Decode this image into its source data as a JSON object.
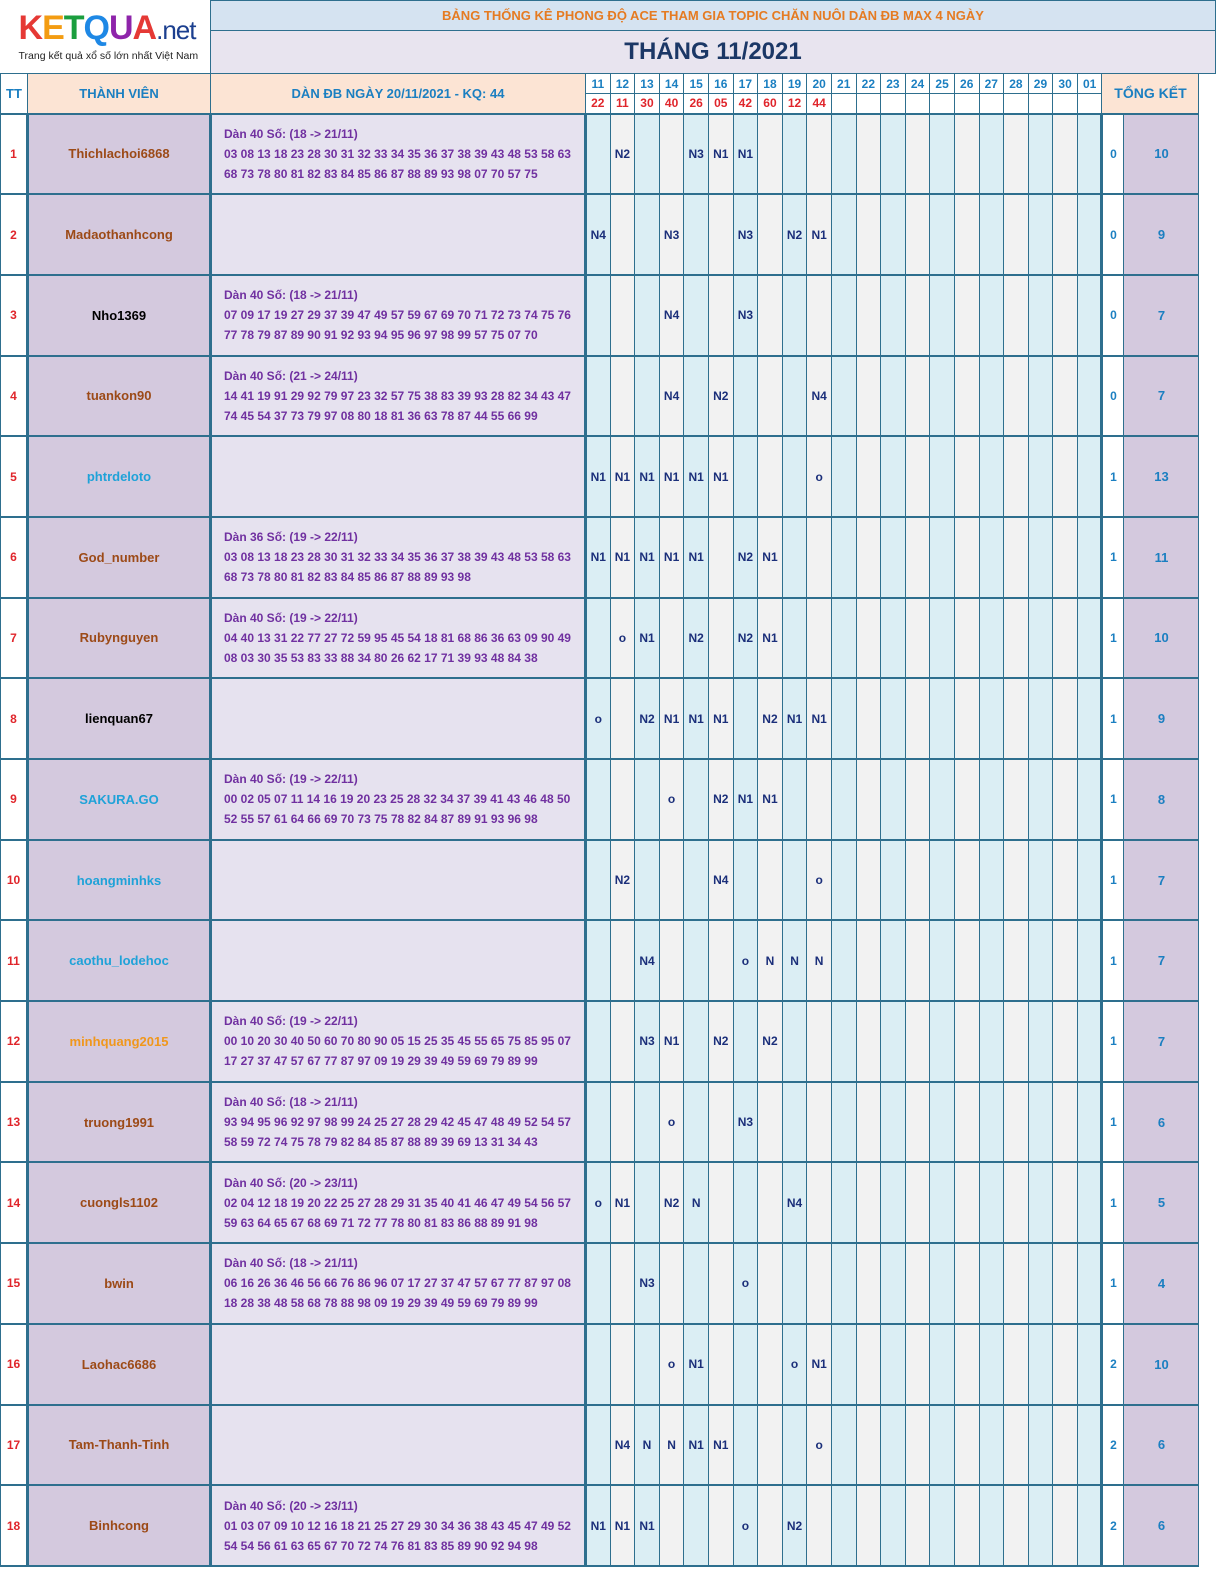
{
  "logo": {
    "letters": [
      "K",
      "E",
      "T",
      "Q",
      "U",
      "A"
    ],
    "letter_colors": [
      "#e53935",
      "#f39c12",
      "#1b9e3e",
      "#1e88e5",
      "#8e24aa",
      "#e53935"
    ],
    "suffix": ".net",
    "tagline": "Trang kết quả xổ số lớn nhất Việt Nam"
  },
  "banner_title": "BẢNG THỐNG KÊ PHONG ĐỘ ACE THAM GIA TOPIC CHĂN NUÔI DÀN ĐB MAX 4 NGÀY",
  "month_title": "THÁNG 11/2021",
  "headers": {
    "tt": "TT",
    "member": "THÀNH VIÊN",
    "dan": "DÀN ĐB NGÀY 20/11/2021 - KQ: 44",
    "total": "TỔNG KẾT"
  },
  "days": [
    "11",
    "12",
    "13",
    "14",
    "15",
    "16",
    "17",
    "18",
    "19",
    "20",
    "21",
    "22",
    "23",
    "24",
    "25",
    "26",
    "27",
    "28",
    "29",
    "30",
    "01"
  ],
  "results": [
    "22",
    "11",
    "30",
    "40",
    "26",
    "05",
    "42",
    "60",
    "12",
    "44",
    "",
    "",
    "",
    "",
    "",
    "",
    "",
    "",
    "",
    "",
    ""
  ],
  "name_colors": {
    "brown": "#9c4a17",
    "black": "#000000",
    "sky": "#1fa2d8",
    "orange": "#f0971c"
  },
  "rows": [
    {
      "tt": "1",
      "name": "Thichlachoi6868",
      "color": "brown",
      "dan": [
        "Dàn 40 Số: (18 -> 21/11)",
        "03 08 13 18 23 28 30 31 32 33 34 35 36 37 38 39 43 48 53 58 63",
        "68 73 78 80 81 82 83 84 85 86 87 88 89 93 98 07 70 57 75"
      ],
      "marks": [
        "",
        "N2",
        "",
        "",
        "N3",
        "N1",
        "N1",
        "",
        "",
        ""
      ],
      "count": "0",
      "total": "10"
    },
    {
      "tt": "2",
      "name": "Madaothanhcong",
      "color": "brown",
      "dan": [
        "",
        "",
        ""
      ],
      "marks": [
        "N4",
        "",
        "",
        "N3",
        "",
        "",
        "N3",
        "",
        "N2",
        "N1"
      ],
      "count": "0",
      "total": "9"
    },
    {
      "tt": "3",
      "name": "Nho1369",
      "color": "black",
      "dan": [
        "Dàn 40 Số: (18 -> 21/11)",
        "07 09 17 19 27 29 37 39 47 49 57 59 67 69 70 71 72 73 74 75 76",
        "77 78 79 87 89 90 91 92 93 94 95 96 97 98 99 57 75 07 70"
      ],
      "marks": [
        "",
        "",
        "",
        "N4",
        "",
        "",
        "N3",
        "",
        "",
        ""
      ],
      "count": "0",
      "total": "7"
    },
    {
      "tt": "4",
      "name": "tuankon90",
      "color": "brown",
      "dan": [
        "Dàn 40 Số: (21 -> 24/11)",
        "14 41 19 91 29 92 79 97 23 32 57 75 38 83 39 93 28 82 34 43 47",
        "74 45 54 37 73 79 97 08 80 18 81 36 63 78 87 44 55 66 99"
      ],
      "marks": [
        "",
        "",
        "",
        "N4",
        "",
        "N2",
        "",
        "",
        "",
        "N4"
      ],
      "count": "0",
      "total": "7"
    },
    {
      "tt": "5",
      "name": "phtrdeloto",
      "color": "sky",
      "dan": [
        "",
        "",
        ""
      ],
      "marks": [
        "N1",
        "N1",
        "N1",
        "N1",
        "N1",
        "N1",
        "",
        "",
        "",
        "o"
      ],
      "count": "1",
      "total": "13"
    },
    {
      "tt": "6",
      "name": "God_number",
      "color": "brown",
      "dan": [
        "Dàn 36 Số: (19 -> 22/11)",
        "03 08 13 18 23 28 30 31 32 33 34 35 36 37 38 39 43 48 53 58 63",
        "68 73 78 80 81 82 83 84 85 86 87 88 89 93 98"
      ],
      "marks": [
        "N1",
        "N1",
        "N1",
        "N1",
        "N1",
        "",
        "N2",
        "N1",
        "",
        ""
      ],
      "count": "1",
      "total": "11"
    },
    {
      "tt": "7",
      "name": "Rubynguyen",
      "color": "brown",
      "dan": [
        "Dàn 40 Số: (19 -> 22/11)",
        "04 40 13 31 22 77 27 72 59 95 45 54 18 81 68 86 36 63 09 90 49",
        "08 03 30 35 53 83 33 88 34 80 26 62 17 71 39 93 48 84 38"
      ],
      "marks": [
        "",
        "o",
        "N1",
        "",
        "N2",
        "",
        "N2",
        "N1",
        "",
        ""
      ],
      "count": "1",
      "total": "10"
    },
    {
      "tt": "8",
      "name": "lienquan67",
      "color": "black",
      "dan": [
        "",
        "",
        ""
      ],
      "marks": [
        "o",
        "",
        "N2",
        "N1",
        "N1",
        "N1",
        "",
        "N2",
        "N1",
        "N1"
      ],
      "count": "1",
      "total": "9"
    },
    {
      "tt": "9",
      "name": "SAKURA.GO",
      "color": "sky",
      "dan": [
        "Dàn 40 Số: (19 -> 22/11)",
        "00 02 05 07 11 14 16 19 20 23 25 28 32 34 37 39 41 43 46 48 50",
        "52 55 57 61 64 66 69 70 73 75 78 82 84 87 89 91 93 96 98"
      ],
      "marks": [
        "",
        "",
        "",
        "o",
        "",
        "N2",
        "N1",
        "N1",
        "",
        ""
      ],
      "count": "1",
      "total": "8"
    },
    {
      "tt": "10",
      "name": "hoangminhks",
      "color": "sky",
      "dan": [
        "",
        "",
        ""
      ],
      "marks": [
        "",
        "N2",
        "",
        "",
        "",
        "N4",
        "",
        "",
        "",
        "o"
      ],
      "count": "1",
      "total": "7"
    },
    {
      "tt": "11",
      "name": "caothu_lodehoc",
      "color": "sky",
      "dan": [
        "",
        "",
        ""
      ],
      "marks": [
        "",
        "",
        "N4",
        "",
        "",
        "",
        "o",
        "N",
        "N",
        "N"
      ],
      "count": "1",
      "total": "7"
    },
    {
      "tt": "12",
      "name": "minhquang2015",
      "color": "orange",
      "dan": [
        "Dàn 40 Số: (19 -> 22/11)",
        "00 10 20 30 40 50 60 70 80 90 05 15 25 35 45 55 65 75 85 95 07",
        "17 27 37 47 57 67 77 87 97 09 19 29 39 49 59 69 79 89 99"
      ],
      "marks": [
        "",
        "",
        "N3",
        "N1",
        "",
        "N2",
        "",
        "N2",
        "",
        ""
      ],
      "count": "1",
      "total": "7"
    },
    {
      "tt": "13",
      "name": "truong1991",
      "color": "brown",
      "dan": [
        "Dàn 40 Số: (18 -> 21/11)",
        "93 94 95 96 92 97 98 99 24 25 27 28 29 42 45 47 48 49 52 54 57",
        "58 59 72 74 75 78 79 82 84 85 87 88 89 39 69 13 31 34 43"
      ],
      "marks": [
        "",
        "",
        "",
        "o",
        "",
        "",
        "N3",
        "",
        "",
        ""
      ],
      "count": "1",
      "total": "6"
    },
    {
      "tt": "14",
      "name": "cuongls1102",
      "color": "brown",
      "dan": [
        "Dàn 40 Số: (20 -> 23/11)",
        "02 04 12 18 19 20 22 25 27 28 29 31 35 40 41 46 47 49 54 56 57",
        "59 63 64 65 67 68 69 71 72 77 78 80 81 83 86 88 89 91 98"
      ],
      "marks": [
        "o",
        "N1",
        "",
        "N2",
        "N",
        "",
        "",
        "",
        "N4",
        ""
      ],
      "count": "1",
      "total": "5"
    },
    {
      "tt": "15",
      "name": "bwin",
      "color": "brown",
      "dan": [
        "Dàn 40 Số: (18 -> 21/11)",
        "06 16 26 36 46 56 66 76 86 96 07 17 27 37 47 57 67 77 87 97 08",
        "18 28 38 48 58 68 78 88 98 09 19 29 39 49 59 69 79 89 99"
      ],
      "marks": [
        "",
        "",
        "N3",
        "",
        "",
        "",
        "o",
        "",
        "",
        ""
      ],
      "count": "1",
      "total": "4"
    },
    {
      "tt": "16",
      "name": "Laohac6686",
      "color": "brown",
      "dan": [
        "",
        "",
        ""
      ],
      "marks": [
        "",
        "",
        "",
        "o",
        "N1",
        "",
        "",
        "",
        "o",
        "N1"
      ],
      "count": "2",
      "total": "10"
    },
    {
      "tt": "17",
      "name": "Tam-Thanh-Tinh",
      "color": "brown",
      "dan": [
        "",
        "",
        ""
      ],
      "marks": [
        "",
        "N4",
        "N",
        "N",
        "N1",
        "N1",
        "",
        "",
        "",
        "o"
      ],
      "count": "2",
      "total": "6"
    },
    {
      "tt": "18",
      "name": "Binhcong",
      "color": "brown",
      "dan": [
        "Dàn 40 Số: (20 -> 23/11)",
        "01 03 07 09 10 12 16 18 21 25 27 29 30 34 36 38 43 45 47 49 52",
        "54 54 56 61 63 65 67 70 72 74 76 81 83 85 89 90 92 94 98"
      ],
      "marks": [
        "N1",
        "N1",
        "N1",
        "",
        "",
        "",
        "o",
        "",
        "N2",
        ""
      ],
      "count": "2",
      "total": "6"
    }
  ]
}
